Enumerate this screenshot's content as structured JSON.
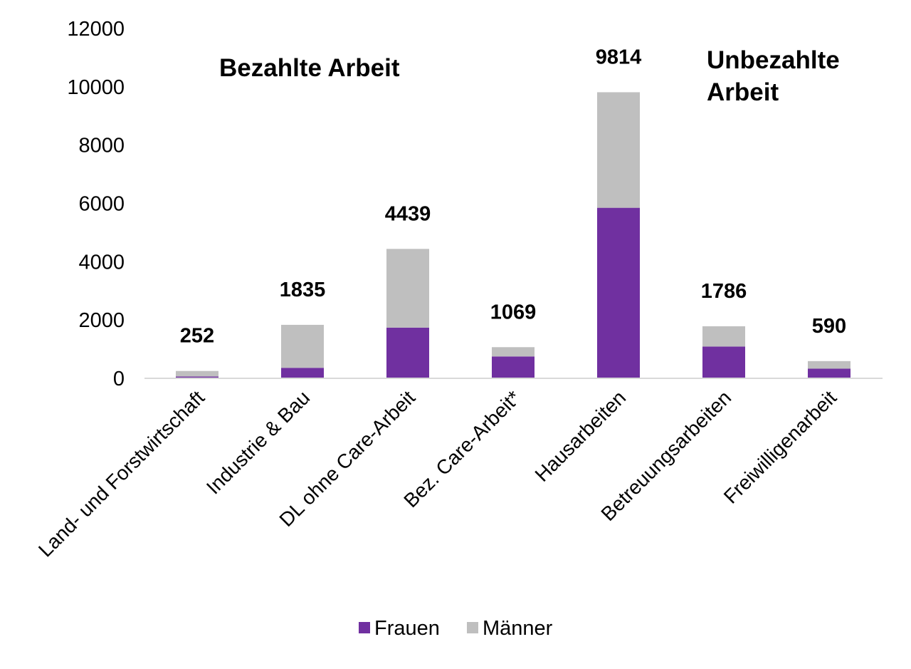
{
  "chart_data": {
    "type": "bar",
    "stacked": true,
    "categories": [
      "Land- und Forstwirtschaft",
      "Industrie & Bau",
      "DL ohne Care-Arbeit",
      "Bez. Care-Arbeit*",
      "Hausarbeiten",
      "Betreuungsarbeiten",
      "Freiwilligenarbeit"
    ],
    "series": [
      {
        "name": "Frauen",
        "color": "#7030a0",
        "values": [
          60,
          360,
          1740,
          750,
          5850,
          1090,
          330
        ]
      },
      {
        "name": "Männer",
        "color": "#bfbfbf",
        "values": [
          192,
          1475,
          2699,
          319,
          3964,
          696,
          260
        ]
      }
    ],
    "totals": [
      "252",
      "1835",
      "4439",
      "1069",
      "9814",
      "1786",
      "590"
    ],
    "ylim": [
      0,
      12000
    ],
    "yticks": [
      "0",
      "2000",
      "4000",
      "6000",
      "8000",
      "10000",
      "12000"
    ],
    "annotations": [
      "Bezahlte Arbeit",
      "Unbezahlte",
      "Arbeit"
    ],
    "legend_position": "bottom",
    "grid": false
  }
}
